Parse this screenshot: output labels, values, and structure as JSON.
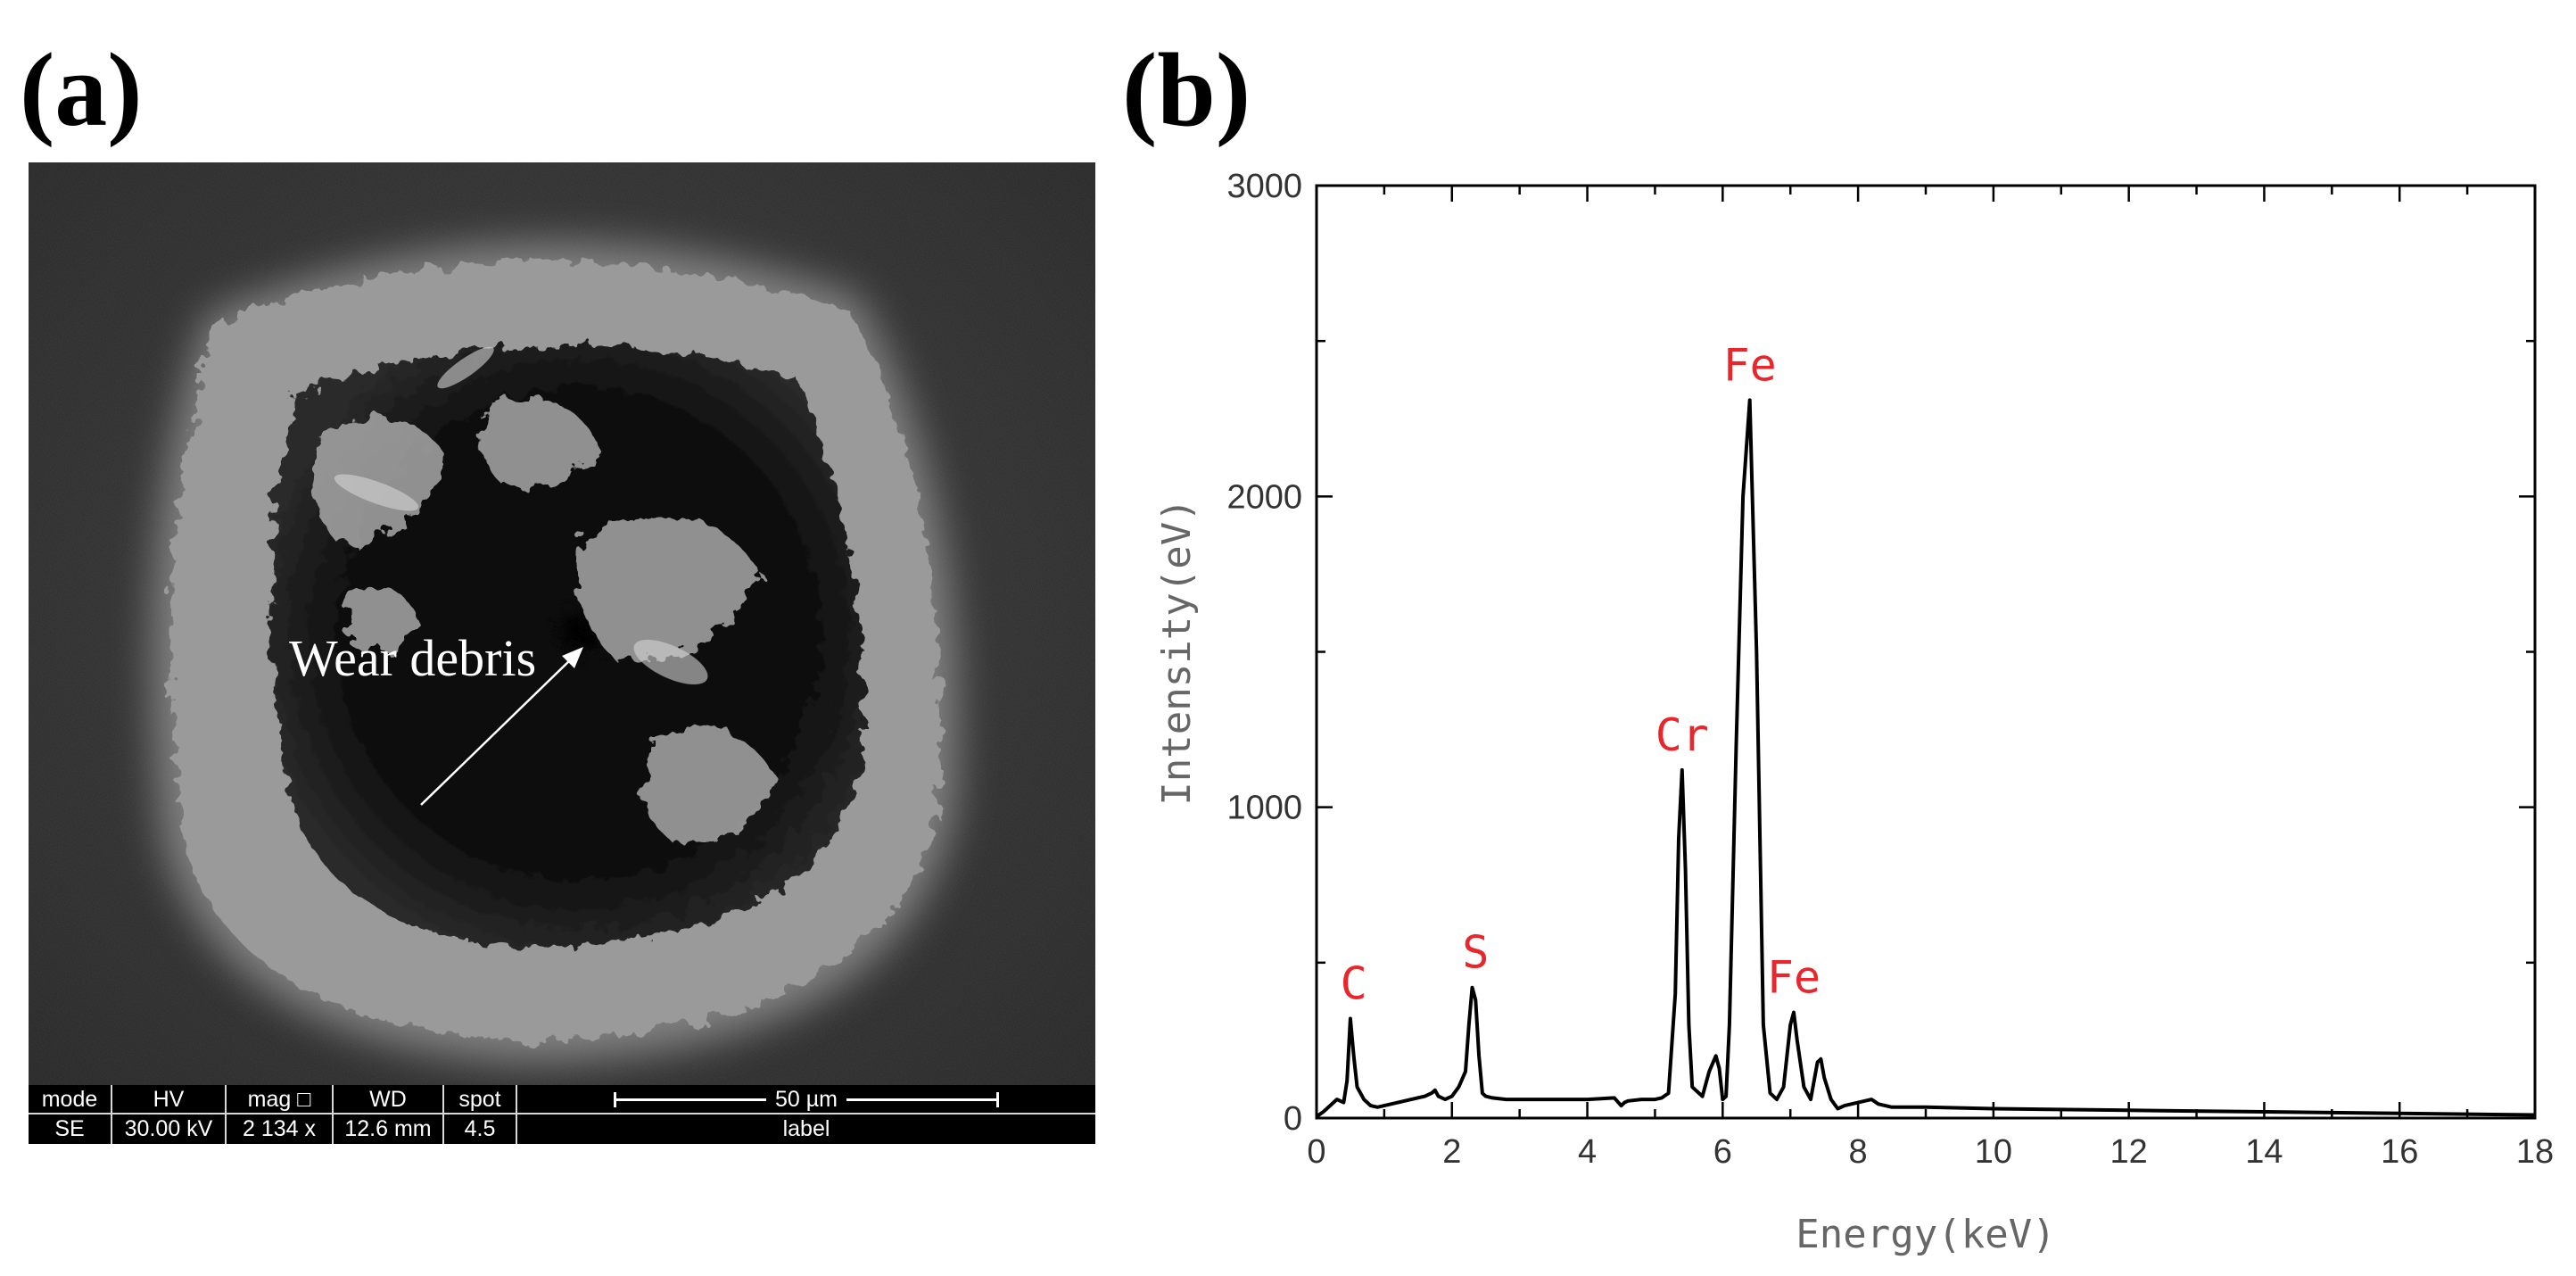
{
  "panels": {
    "a_label": "(a)",
    "b_label": "(b)"
  },
  "sem": {
    "annotation": "Wear debris",
    "databar": {
      "columns": [
        {
          "header": "mode",
          "value": "SE"
        },
        {
          "header": "HV",
          "value": "30.00 kV"
        },
        {
          "header": "mag □",
          "value": "2 134 x"
        },
        {
          "header": "WD",
          "value": "12.6 mm"
        },
        {
          "header": "spot",
          "value": "4.5"
        }
      ],
      "scale_bar": "50 µm",
      "label": "label"
    }
  },
  "chart_data": {
    "type": "line",
    "xlabel": "Energy(keV)",
    "ylabel": "Intensity(eV)",
    "xlim": [
      0,
      18
    ],
    "ylim": [
      0,
      3000
    ],
    "xticks": [
      0,
      2,
      4,
      6,
      8,
      10,
      12,
      14,
      16,
      18
    ],
    "yticks": [
      0,
      1000,
      2000,
      3000
    ],
    "grid": false,
    "series": [
      {
        "x": [
          0,
          0.1,
          0.2,
          0.3,
          0.4,
          0.45,
          0.5,
          0.55,
          0.6,
          0.65,
          0.7,
          0.8,
          0.9,
          1.0,
          1.2,
          1.4,
          1.6,
          1.7,
          1.75,
          1.8,
          1.9,
          2.0,
          2.1,
          2.2,
          2.25,
          2.3,
          2.35,
          2.4,
          2.45,
          2.5,
          2.6,
          2.8,
          3.0,
          3.5,
          4.0,
          4.4,
          4.5,
          4.55,
          4.6,
          4.8,
          5.0,
          5.1,
          5.2,
          5.3,
          5.35,
          5.4,
          5.45,
          5.5,
          5.55,
          5.6,
          5.7,
          5.8,
          5.9,
          5.95,
          6.0,
          6.05,
          6.1,
          6.2,
          6.3,
          6.4,
          6.5,
          6.6,
          6.7,
          6.8,
          6.9,
          7.0,
          7.05,
          7.1,
          7.2,
          7.3,
          7.4,
          7.45,
          7.5,
          7.6,
          7.7,
          7.8,
          8.0,
          8.2,
          8.3,
          8.5,
          9.0,
          10.0,
          12.0,
          14.0,
          16.0,
          18.0
        ],
        "y": [
          5,
          20,
          40,
          60,
          50,
          120,
          320,
          200,
          100,
          80,
          60,
          40,
          35,
          40,
          50,
          60,
          70,
          80,
          90,
          70,
          60,
          70,
          100,
          150,
          300,
          420,
          380,
          200,
          80,
          70,
          65,
          60,
          60,
          60,
          60,
          65,
          40,
          50,
          55,
          60,
          60,
          65,
          80,
          400,
          900,
          1120,
          800,
          300,
          100,
          90,
          70,
          150,
          200,
          160,
          60,
          70,
          300,
          1200,
          2000,
          2310,
          1500,
          300,
          80,
          60,
          100,
          300,
          340,
          250,
          100,
          60,
          180,
          190,
          130,
          60,
          30,
          40,
          50,
          60,
          45,
          35,
          35,
          30,
          25,
          20,
          15,
          10
        ]
      }
    ],
    "annotations": [
      {
        "text": "C",
        "x": 0.55,
        "y": 320
      },
      {
        "text": "S",
        "x": 2.35,
        "y": 420
      },
      {
        "text": "Cr",
        "x": 5.4,
        "y": 1120
      },
      {
        "text": "Fe",
        "x": 6.4,
        "y": 2310
      },
      {
        "text": "Fe",
        "x": 7.05,
        "y": 340
      }
    ]
  }
}
